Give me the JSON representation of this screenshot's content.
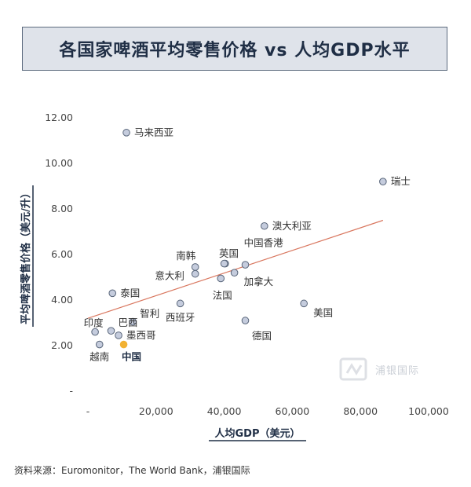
{
  "chart_data": {
    "type": "scatter",
    "title": "各国家啤酒平均零售价格 vs 人均GDP水平",
    "xlabel": "人均GDP（美元）",
    "ylabel": "平均啤酒零售价格（美元/升）",
    "xlim": [
      0,
      100000
    ],
    "ylim": [
      0,
      12
    ],
    "x_ticks": [
      {
        "value": 0,
        "label": "-"
      },
      {
        "value": 20000,
        "label": "20,000"
      },
      {
        "value": 40000,
        "label": "40,000"
      },
      {
        "value": 60000,
        "label": "60,000"
      },
      {
        "value": 80000,
        "label": "80,000"
      },
      {
        "value": 100000,
        "label": "100,000"
      }
    ],
    "y_ticks": [
      {
        "value": 0,
        "label": "-"
      },
      {
        "value": 2,
        "label": "2.00"
      },
      {
        "value": 4,
        "label": "4.00"
      },
      {
        "value": 6,
        "label": "6.00"
      },
      {
        "value": 8,
        "label": "8.00"
      },
      {
        "value": 10,
        "label": "10.00"
      },
      {
        "value": 12,
        "label": "12.00"
      }
    ],
    "points": [
      {
        "name": "马来西亚",
        "x": 11300,
        "y": 11.35,
        "label_pos": "right"
      },
      {
        "name": "瑞士",
        "x": 86600,
        "y": 9.2,
        "label_pos": "right"
      },
      {
        "name": "澳大利亚",
        "x": 51800,
        "y": 7.25,
        "label_pos": "right"
      },
      {
        "name": "南韩",
        "x": 31500,
        "y": 5.45,
        "label_pos": "left-up"
      },
      {
        "name": "",
        "x": 31500,
        "y": 5.15
      },
      {
        "name": "意大利",
        "x": 40300,
        "y": 5.6,
        "label_pos": "left-down-far"
      },
      {
        "name": "英国",
        "x": 46200,
        "y": 5.55,
        "label_pos": "above"
      },
      {
        "name": "中国香港",
        "x": 40000,
        "y": 5.6,
        "label_pos": "hk"
      },
      {
        "name": "加拿大",
        "x": 43000,
        "y": 5.2,
        "label_pos": "right-down"
      },
      {
        "name": "法国",
        "x": 39000,
        "y": 4.95,
        "label_pos": "below"
      },
      {
        "name": "泰国",
        "x": 7200,
        "y": 4.3,
        "label_pos": "right"
      },
      {
        "name": "西班牙",
        "x": 27100,
        "y": 3.85,
        "label_pos": "below-left"
      },
      {
        "name": "美国",
        "x": 63400,
        "y": 3.85,
        "label_pos": "right-down"
      },
      {
        "name": "智利",
        "x": 13200,
        "y": 3.05,
        "label_pos": "right-up"
      },
      {
        "name": "德国",
        "x": 46200,
        "y": 3.1,
        "label_pos": "below"
      },
      {
        "name": "巴西",
        "x": 6800,
        "y": 2.65,
        "label_pos": "right-up"
      },
      {
        "name": "墨西哥",
        "x": 9000,
        "y": 2.45,
        "label_pos": "right"
      },
      {
        "name": "印度",
        "x": 2100,
        "y": 2.6,
        "label_pos": "above"
      },
      {
        "name": "越南",
        "x": 3400,
        "y": 2.05,
        "label_pos": "below"
      },
      {
        "name": "中国",
        "x": 10500,
        "y": 2.05,
        "label_pos": "below",
        "highlight": true
      }
    ],
    "trendline": {
      "x": [
        0,
        86600
      ],
      "y": [
        3.2,
        7.5
      ]
    },
    "grid": false,
    "point_color": "#c5ccdd",
    "point_edge_color": "#59667a",
    "highlight_color": "#f2b233",
    "trend_color": "#d9775f"
  },
  "source_text": "资料来源：Euromonitor，The World Bank，浦银国际",
  "watermark_text": "浦银国际"
}
